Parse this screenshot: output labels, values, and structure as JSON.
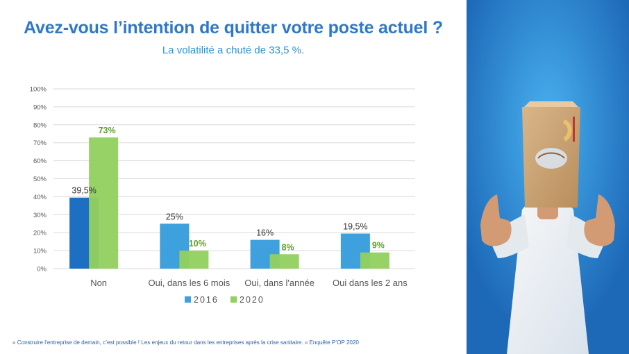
{
  "slide": {
    "title": "Avez-vous l’intention de quitter votre poste actuel ?",
    "subtitle": "La volatilité a chuté de 33,5 %.",
    "footer": "« Construire l’entreprise de demain, c’est possible ! Les enjeux du retour dans les entreprises après la crise sanitaire. » Enquête P’OP 2020"
  },
  "chart_data": {
    "type": "bar",
    "categories": [
      "Non",
      "Oui, dans les 6 mois",
      "Oui, dans l'année",
      "Oui dans les 2 ans"
    ],
    "series": [
      {
        "name": "2016",
        "values": [
          39.5,
          25,
          16,
          19.5
        ],
        "labels": [
          "39,5%",
          "25%",
          "16%",
          "19,5%"
        ]
      },
      {
        "name": "2020",
        "values": [
          73,
          10,
          8,
          9
        ],
        "labels": [
          "73%",
          "10%",
          "8%",
          "9%"
        ]
      }
    ],
    "ylim": [
      0,
      100
    ],
    "yticks": [
      0,
      10,
      20,
      30,
      40,
      50,
      60,
      70,
      80,
      90,
      100
    ],
    "ytick_labels": [
      "0%",
      "10%",
      "20%",
      "30%",
      "40%",
      "50%",
      "60%",
      "70%",
      "80%",
      "90%",
      "100%"
    ],
    "grid": true,
    "legend": "bottom",
    "colors": {
      "2016_bar": "#3ea0dc",
      "2016_first_bar": "#1c6fc2",
      "2020_bar": "#92d060",
      "2020_label": "#5f9f2b",
      "axis_text": "#555555",
      "gridline": "#d9d9d9"
    }
  },
  "photo": {
    "icon": "person-bag-over-head-thumbs-up-icon",
    "background": "#2f8fdf"
  }
}
